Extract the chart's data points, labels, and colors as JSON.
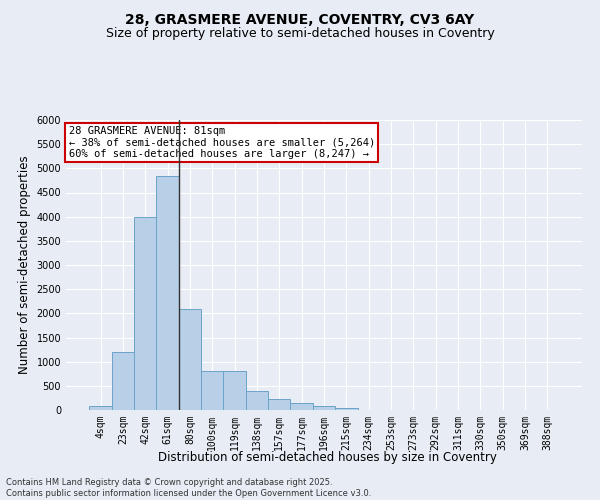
{
  "title_line1": "28, GRASMERE AVENUE, COVENTRY, CV3 6AY",
  "title_line2": "Size of property relative to semi-detached houses in Coventry",
  "xlabel": "Distribution of semi-detached houses by size in Coventry",
  "ylabel": "Number of semi-detached properties",
  "categories": [
    "4sqm",
    "23sqm",
    "42sqm",
    "61sqm",
    "80sqm",
    "100sqm",
    "119sqm",
    "138sqm",
    "157sqm",
    "177sqm",
    "196sqm",
    "215sqm",
    "234sqm",
    "253sqm",
    "273sqm",
    "292sqm",
    "311sqm",
    "330sqm",
    "350sqm",
    "369sqm",
    "388sqm"
  ],
  "values": [
    80,
    1200,
    4000,
    4850,
    2100,
    800,
    800,
    400,
    220,
    150,
    80,
    50,
    0,
    0,
    0,
    0,
    0,
    0,
    0,
    0,
    0
  ],
  "bar_color": "#b8cfe8",
  "bar_edge_color": "#6ba3c8",
  "vline_x": 3.5,
  "annotation_text": "28 GRASMERE AVENUE: 81sqm\n← 38% of semi-detached houses are smaller (5,264)\n60% of semi-detached houses are larger (8,247) →",
  "annotation_box_color": "#ffffff",
  "annotation_box_edge": "#cc0000",
  "ylim": [
    0,
    6000
  ],
  "yticks": [
    0,
    500,
    1000,
    1500,
    2000,
    2500,
    3000,
    3500,
    4000,
    4500,
    5000,
    5500,
    6000
  ],
  "footer_line1": "Contains HM Land Registry data © Crown copyright and database right 2025.",
  "footer_line2": "Contains public sector information licensed under the Open Government Licence v3.0.",
  "background_color": "#e8edf5",
  "plot_bg_color": "#e8edf5",
  "grid_color": "#ffffff",
  "title_fontsize": 10,
  "subtitle_fontsize": 9,
  "tick_fontsize": 7,
  "label_fontsize": 8.5,
  "annotation_fontsize": 7.5,
  "footer_fontsize": 6
}
